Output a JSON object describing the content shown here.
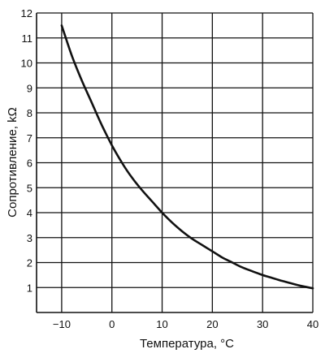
{
  "chart_data": {
    "type": "line",
    "title": "",
    "xlabel": "Температура, °С",
    "ylabel": "Сопротивление, kΩ",
    "xlim": [
      -15,
      40
    ],
    "ylim": [
      0,
      12
    ],
    "x_ticks": [
      -10,
      0,
      10,
      20,
      30,
      40
    ],
    "y_ticks": [
      1,
      2,
      3,
      4,
      5,
      6,
      7,
      8,
      9,
      10,
      11,
      12
    ],
    "x_tick_labels": [
      "−10",
      "0",
      "10",
      "20",
      "30",
      "40"
    ],
    "y_tick_labels": [
      "1",
      "2",
      "3",
      "4",
      "5",
      "6",
      "7",
      "8",
      "9",
      "10",
      "11",
      "12"
    ],
    "grid": true,
    "series": [
      {
        "x": [
          -10,
          -8,
          -6,
          -4,
          -2,
          0,
          2,
          4,
          6,
          8,
          10,
          12,
          14,
          16,
          18,
          20,
          22,
          24,
          26,
          28,
          30,
          32,
          34,
          36,
          38,
          40
        ],
        "y": [
          11.5,
          10.3,
          9.3,
          8.4,
          7.5,
          6.7,
          6.0,
          5.4,
          4.9,
          4.45,
          4.0,
          3.6,
          3.25,
          2.95,
          2.7,
          2.45,
          2.2,
          2.0,
          1.8,
          1.65,
          1.5,
          1.38,
          1.26,
          1.15,
          1.05,
          0.97
        ]
      }
    ],
    "colors": {
      "line": "#111111",
      "grid": "#111111",
      "background": "#ffffff"
    }
  }
}
